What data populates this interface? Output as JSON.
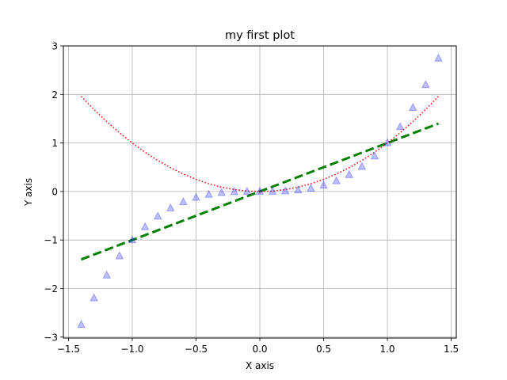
{
  "chart_data": {
    "type": "line",
    "title": "my first plot",
    "xlabel": "X axis",
    "ylabel": "Y axis",
    "xlim": [
      -1.54,
      1.54
    ],
    "ylim": [
      -3.02,
      3.0
    ],
    "grid": true,
    "x_ticks": [
      -1.5,
      -1.0,
      -0.5,
      0.0,
      0.5,
      1.0,
      1.5
    ],
    "x_tick_labels": [
      "−1.5",
      "−1.0",
      "−0.5",
      "0.0",
      "0.5",
      "1.0",
      "1.5"
    ],
    "y_ticks": [
      -3,
      -2,
      -1,
      0,
      1,
      2,
      3
    ],
    "y_tick_labels": [
      "−3",
      "−2",
      "−1",
      "0",
      "1",
      "2",
      "3"
    ],
    "x": [
      -1.4,
      -1.3,
      -1.2,
      -1.1,
      -1.0,
      -0.9,
      -0.8,
      -0.7,
      -0.6,
      -0.5,
      -0.4,
      -0.3,
      -0.2,
      -0.1,
      0.0,
      0.1,
      0.2,
      0.3,
      0.4,
      0.5,
      0.6,
      0.7,
      0.8,
      0.9,
      1.0,
      1.1,
      1.2,
      1.3,
      1.4
    ],
    "series": [
      {
        "style": "dashed",
        "color": "#008000",
        "values": [
          -1.4,
          -1.3,
          -1.2,
          -1.1,
          -1.0,
          -0.9,
          -0.8,
          -0.7,
          -0.6,
          -0.5,
          -0.4,
          -0.3,
          -0.2,
          -0.1,
          0.0,
          0.1,
          0.2,
          0.3,
          0.4,
          0.5,
          0.6,
          0.7,
          0.8,
          0.9,
          1.0,
          1.1,
          1.2,
          1.3,
          1.4
        ]
      },
      {
        "style": "dotted",
        "color": "#ff0000",
        "values": [
          1.96,
          1.69,
          1.44,
          1.21,
          1.0,
          0.81,
          0.64,
          0.49,
          0.36,
          0.25,
          0.16,
          0.09,
          0.04,
          0.01,
          0.0,
          0.01,
          0.04,
          0.09,
          0.16,
          0.25,
          0.36,
          0.49,
          0.64,
          0.81,
          1.0,
          1.21,
          1.44,
          1.69,
          1.96
        ]
      },
      {
        "style": "triangle-markers",
        "color": "#0000ff",
        "values": [
          -2.744,
          -2.197,
          -1.728,
          -1.331,
          -1.0,
          -0.729,
          -0.512,
          -0.343,
          -0.216,
          -0.125,
          -0.064,
          -0.027,
          -0.008,
          -0.001,
          0.0,
          0.001,
          0.008,
          0.027,
          0.064,
          0.125,
          0.216,
          0.343,
          0.512,
          0.729,
          1.0,
          1.331,
          1.728,
          2.197,
          2.744
        ]
      }
    ]
  }
}
